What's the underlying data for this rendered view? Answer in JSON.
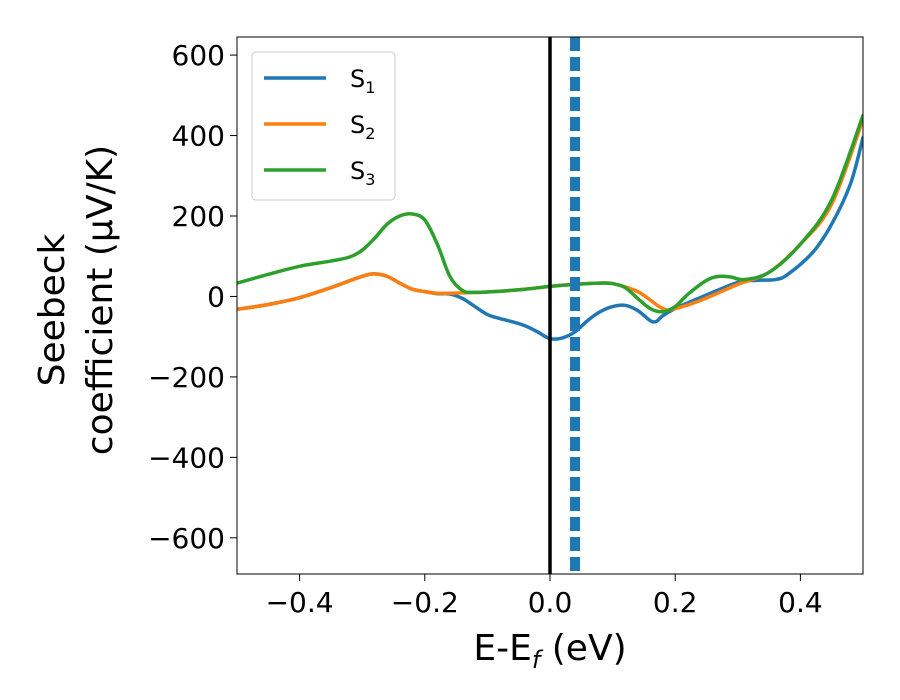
{
  "chart_data": {
    "type": "line",
    "xlabel": {
      "main": "E-E",
      "sub": "f",
      "unit": " (eV)"
    },
    "ylabel": {
      "line1": "Seebeck",
      "line2": "coefficient  (μV/K)"
    },
    "xlim": [
      -0.5,
      0.5
    ],
    "ylim": [
      -690,
      645
    ],
    "x_ticks": [
      -0.4,
      -0.2,
      0.0,
      0.2,
      0.4
    ],
    "x_tick_labels": [
      "−0.4",
      "−0.2",
      "0.0",
      "0.2",
      "0.4"
    ],
    "y_ticks": [
      -600,
      -400,
      -200,
      0,
      200,
      400,
      600
    ],
    "y_tick_labels": [
      "−600",
      "−400",
      "−200",
      "0",
      "200",
      "400",
      "600"
    ],
    "grid": false,
    "legend_position": "top-left",
    "series": [
      {
        "name": "S",
        "subscript": "1",
        "color": "#1f77b4",
        "points": [
          [
            -0.5,
            -32
          ],
          [
            -0.45,
            -20
          ],
          [
            -0.4,
            -3
          ],
          [
            -0.35,
            22
          ],
          [
            -0.3,
            50
          ],
          [
            -0.28,
            56
          ],
          [
            -0.26,
            50
          ],
          [
            -0.24,
            33
          ],
          [
            -0.22,
            18
          ],
          [
            -0.2,
            12
          ],
          [
            -0.18,
            7
          ],
          [
            -0.16,
            6
          ],
          [
            -0.14,
            -5
          ],
          [
            -0.12,
            -25
          ],
          [
            -0.1,
            -45
          ],
          [
            -0.08,
            -55
          ],
          [
            -0.06,
            -63
          ],
          [
            -0.04,
            -73
          ],
          [
            -0.02,
            -88
          ],
          [
            0.0,
            -105
          ],
          [
            0.02,
            -103
          ],
          [
            0.04,
            -88
          ],
          [
            0.06,
            -60
          ],
          [
            0.08,
            -38
          ],
          [
            0.1,
            -25
          ],
          [
            0.12,
            -22
          ],
          [
            0.14,
            -35
          ],
          [
            0.16,
            -60
          ],
          [
            0.17,
            -62
          ],
          [
            0.18,
            -48
          ],
          [
            0.2,
            -30
          ],
          [
            0.24,
            -3
          ],
          [
            0.3,
            35
          ],
          [
            0.33,
            40
          ],
          [
            0.36,
            42
          ],
          [
            0.38,
            55
          ],
          [
            0.42,
            110
          ],
          [
            0.45,
            180
          ],
          [
            0.48,
            280
          ],
          [
            0.5,
            395
          ]
        ]
      },
      {
        "name": "S",
        "subscript": "2",
        "color": "#ff7f0e",
        "points": [
          [
            -0.5,
            -32
          ],
          [
            -0.45,
            -20
          ],
          [
            -0.4,
            -3
          ],
          [
            -0.35,
            22
          ],
          [
            -0.3,
            50
          ],
          [
            -0.28,
            56
          ],
          [
            -0.26,
            50
          ],
          [
            -0.24,
            33
          ],
          [
            -0.22,
            18
          ],
          [
            -0.2,
            12
          ],
          [
            -0.18,
            8
          ],
          [
            -0.16,
            8
          ],
          [
            -0.12,
            10
          ],
          [
            -0.08,
            13
          ],
          [
            -0.04,
            18
          ],
          [
            0.0,
            25
          ],
          [
            0.04,
            30
          ],
          [
            0.08,
            33
          ],
          [
            0.1,
            32
          ],
          [
            0.14,
            12
          ],
          [
            0.18,
            -30
          ],
          [
            0.2,
            -30
          ],
          [
            0.24,
            -10
          ],
          [
            0.3,
            30
          ],
          [
            0.35,
            60
          ],
          [
            0.4,
            130
          ],
          [
            0.45,
            230
          ],
          [
            0.5,
            440
          ]
        ]
      },
      {
        "name": "S",
        "subscript": "3",
        "color": "#2ca02c",
        "points": [
          [
            -0.5,
            33
          ],
          [
            -0.45,
            55
          ],
          [
            -0.4,
            75
          ],
          [
            -0.35,
            88
          ],
          [
            -0.32,
            98
          ],
          [
            -0.3,
            115
          ],
          [
            -0.28,
            145
          ],
          [
            -0.26,
            180
          ],
          [
            -0.24,
            200
          ],
          [
            -0.22,
            205
          ],
          [
            -0.2,
            190
          ],
          [
            -0.18,
            130
          ],
          [
            -0.16,
            50
          ],
          [
            -0.14,
            15
          ],
          [
            -0.12,
            10
          ],
          [
            -0.08,
            13
          ],
          [
            -0.04,
            18
          ],
          [
            0.0,
            25
          ],
          [
            0.04,
            30
          ],
          [
            0.08,
            33
          ],
          [
            0.1,
            32
          ],
          [
            0.12,
            22
          ],
          [
            0.14,
            -5
          ],
          [
            0.16,
            -30
          ],
          [
            0.18,
            -38
          ],
          [
            0.2,
            -25
          ],
          [
            0.22,
            5
          ],
          [
            0.25,
            40
          ],
          [
            0.27,
            50
          ],
          [
            0.29,
            48
          ],
          [
            0.31,
            42
          ],
          [
            0.35,
            60
          ],
          [
            0.4,
            130
          ],
          [
            0.45,
            240
          ],
          [
            0.5,
            450
          ]
        ]
      }
    ],
    "vlines": [
      {
        "x": 0.0,
        "color": "#000000",
        "style": "solid"
      },
      {
        "x": 0.04,
        "color": "#1f77b4",
        "style": "dashed"
      }
    ]
  }
}
